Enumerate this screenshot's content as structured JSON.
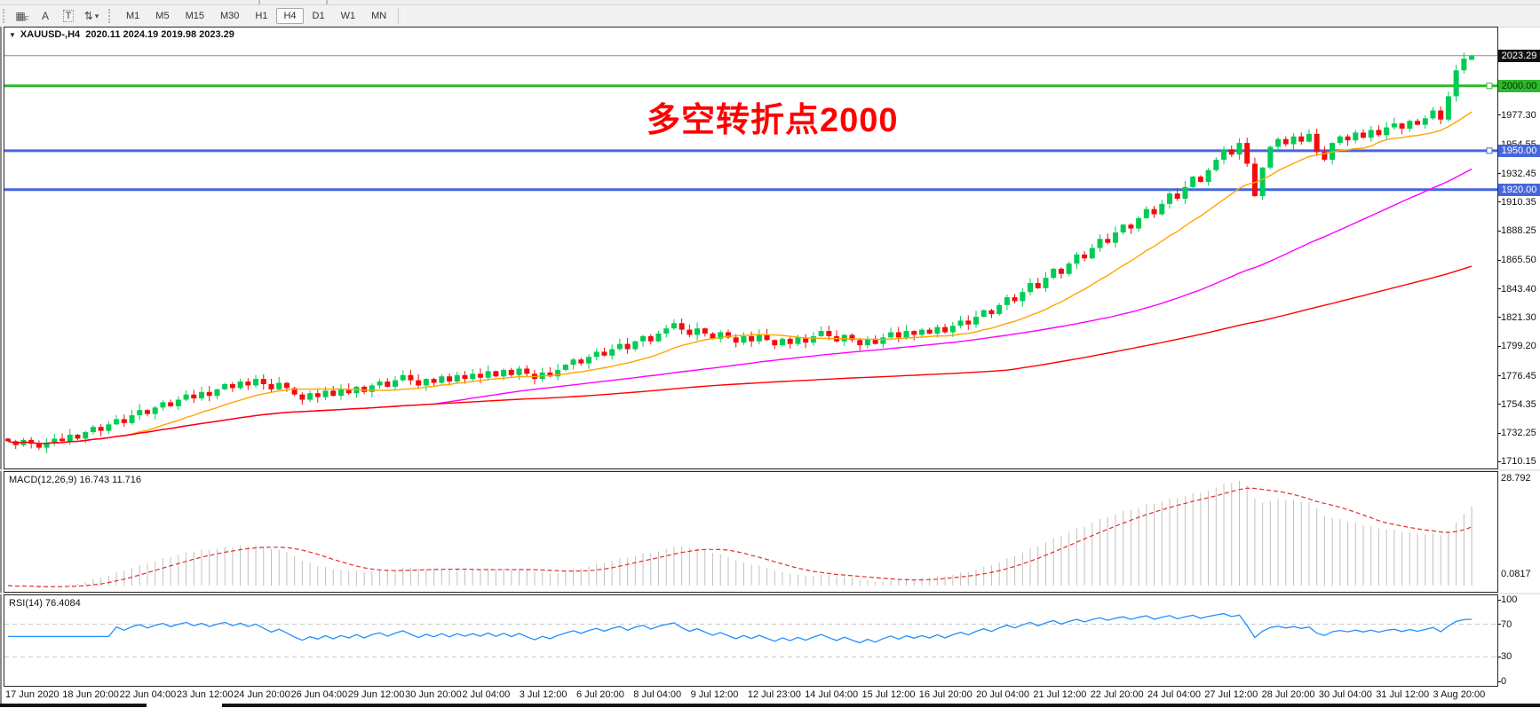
{
  "toolbar": {
    "tools": [
      {
        "name": "period-separators-tool",
        "glyph": "▦",
        "sub": "F"
      },
      {
        "name": "label-a-tool",
        "glyph": "A",
        "sub": ""
      },
      {
        "name": "text-tool",
        "glyph": "T",
        "sub": "",
        "boxed": true
      },
      {
        "name": "arrows-drawing-tool",
        "glyph": "⇅",
        "sub": "",
        "caret": "▾"
      }
    ],
    "timeframes": [
      {
        "label": "M1",
        "active": false
      },
      {
        "label": "M5",
        "active": false
      },
      {
        "label": "M15",
        "active": false
      },
      {
        "label": "M30",
        "active": false
      },
      {
        "label": "H1",
        "active": false
      },
      {
        "label": "H4",
        "active": true
      },
      {
        "label": "D1",
        "active": false
      },
      {
        "label": "W1",
        "active": false
      },
      {
        "label": "MN",
        "active": false
      }
    ]
  },
  "chart": {
    "title": {
      "dropdown": "▼",
      "symbol_period": "XAUUSD-,H4",
      "ohlc_text": "2020.11 2024.19 2019.98 2023.29"
    },
    "annotation": {
      "text": "多空转折点2000",
      "color": "#ff0000"
    },
    "axis_ticks": [
      "1977.30",
      "1954.55",
      "1932.45",
      "1910.35",
      "1888.25",
      "1865.50",
      "1843.40",
      "1821.30",
      "1799.20",
      "1776.45",
      "1754.35",
      "1732.25",
      "1710.15"
    ],
    "badges": [
      {
        "label": "2023.29",
        "value": 2023.29,
        "bg": "#111111",
        "fg": "#ffffff",
        "name": "current-price-badge"
      },
      {
        "label": "2000.00",
        "value": 2000.0,
        "bg": "#2eb82e",
        "fg": "#003300",
        "name": "level-2000-badge"
      },
      {
        "label": "1950.00",
        "value": 1950.0,
        "bg": "#4666dd",
        "fg": "#ffffff",
        "name": "level-1950-badge"
      },
      {
        "label": "1920.00",
        "value": 1920.0,
        "bg": "#4666dd",
        "fg": "#ffffff",
        "name": "level-1920-badge"
      }
    ],
    "hlines": [
      {
        "value": 2023.29,
        "color": "#8a8a8a",
        "width": 1,
        "handle": false,
        "name": "current-price-line"
      },
      {
        "value": 2000.0,
        "color": "#2eb82e",
        "width": 3,
        "handle": true,
        "name": "horizontal-line-2000"
      },
      {
        "value": 1950.0,
        "color": "#4666dd",
        "width": 3,
        "handle": true,
        "name": "horizontal-line-1950"
      },
      {
        "value": 1920.0,
        "color": "#4666dd",
        "width": 3,
        "handle": false,
        "name": "horizontal-line-1920"
      }
    ],
    "time_axis": [
      "17 Jun 2020",
      "18 Jun 20:00",
      "22 Jun 04:00",
      "23 Jun 12:00",
      "24 Jun 20:00",
      "26 Jun 04:00",
      "29 Jun 12:00",
      "30 Jun 20:00",
      "2 Jul 04:00",
      "3 Jul 12:00",
      "6 Jul 20:00",
      "8 Jul 04:00",
      "9 Jul 12:00",
      "12 Jul 23:00",
      "14 Jul 04:00",
      "15 Jul 12:00",
      "16 Jul 20:00",
      "20 Jul 04:00",
      "21 Jul 12:00",
      "22 Jul 20:00",
      "24 Jul 04:00",
      "27 Jul 12:00",
      "28 Jul 20:00",
      "30 Jul 04:00",
      "31 Jul 12:00",
      "3 Aug 20:00"
    ]
  },
  "chart_data": {
    "type": "candlestick",
    "symbol": "XAUUSD-",
    "period": "H4",
    "ohlc_current": {
      "open": 2020.11,
      "high": 2024.19,
      "low": 2019.98,
      "close": 2023.29
    },
    "price_domain": [
      1705,
      2045
    ],
    "closes": [
      1726,
      1723,
      1727,
      1724,
      1721,
      1725,
      1728,
      1726,
      1731,
      1728,
      1733,
      1737,
      1734,
      1739,
      1743,
      1740,
      1746,
      1750,
      1747,
      1752,
      1756,
      1753,
      1758,
      1762,
      1759,
      1764,
      1761,
      1766,
      1770,
      1767,
      1772,
      1769,
      1774,
      1770,
      1766,
      1771,
      1767,
      1762,
      1758,
      1763,
      1760,
      1765,
      1761,
      1766,
      1763,
      1768,
      1764,
      1769,
      1772,
      1768,
      1773,
      1777,
      1773,
      1769,
      1774,
      1771,
      1776,
      1772,
      1777,
      1774,
      1778,
      1775,
      1780,
      1776,
      1781,
      1777,
      1782,
      1778,
      1774,
      1779,
      1776,
      1781,
      1785,
      1789,
      1786,
      1791,
      1795,
      1792,
      1797,
      1801,
      1797,
      1803,
      1807,
      1803,
      1809,
      1813,
      1817,
      1812,
      1808,
      1813,
      1809,
      1805,
      1810,
      1806,
      1802,
      1807,
      1803,
      1808,
      1804,
      1800,
      1805,
      1801,
      1806,
      1802,
      1807,
      1811,
      1807,
      1803,
      1808,
      1804,
      1800,
      1805,
      1801,
      1806,
      1810,
      1806,
      1811,
      1808,
      1812,
      1809,
      1814,
      1810,
      1815,
      1819,
      1816,
      1822,
      1827,
      1824,
      1831,
      1837,
      1834,
      1841,
      1848,
      1844,
      1852,
      1859,
      1855,
      1863,
      1870,
      1867,
      1875,
      1882,
      1879,
      1887,
      1893,
      1890,
      1898,
      1905,
      1901,
      1909,
      1917,
      1913,
      1922,
      1930,
      1926,
      1935,
      1943,
      1951,
      1947,
      1956,
      1940,
      1915,
      1937,
      1953,
      1959,
      1955,
      1961,
      1957,
      1963,
      1949,
      1943,
      1956,
      1961,
      1958,
      1964,
      1960,
      1966,
      1962,
      1968,
      1971,
      1967,
      1973,
      1970,
      1975,
      1981,
      1974,
      1992,
      2012,
      2021,
      2023.29
    ],
    "candle_colors": {
      "bull": "#00cc55",
      "bear": "#f20c0c"
    },
    "moving_averages": [
      {
        "name": "ma-fast",
        "window": 16,
        "color": "#ffa500"
      },
      {
        "name": "ma-mid",
        "window": 56,
        "color": "#ff00ff"
      },
      {
        "name": "ma-slow",
        "window": 130,
        "color": "#ff0000"
      }
    ],
    "indicators": {
      "macd": {
        "label": "MACD(12,26,9) 16.743 11.716",
        "params": [
          12,
          26,
          9
        ],
        "main_value": 16.743,
        "signal_value": 11.716,
        "axis_max_label": "28.792",
        "axis_min_label": "0.0817",
        "histogram_color": "#c0c0c0",
        "signal_color": "#e03030"
      },
      "rsi": {
        "label": "RSI(14) 76.4084",
        "period": 14,
        "value": 76.4084,
        "line_color": "#1e90ff",
        "levels": [
          "100",
          "70",
          "30",
          "0"
        ],
        "dashed_levels": [
          70,
          30
        ]
      }
    }
  }
}
